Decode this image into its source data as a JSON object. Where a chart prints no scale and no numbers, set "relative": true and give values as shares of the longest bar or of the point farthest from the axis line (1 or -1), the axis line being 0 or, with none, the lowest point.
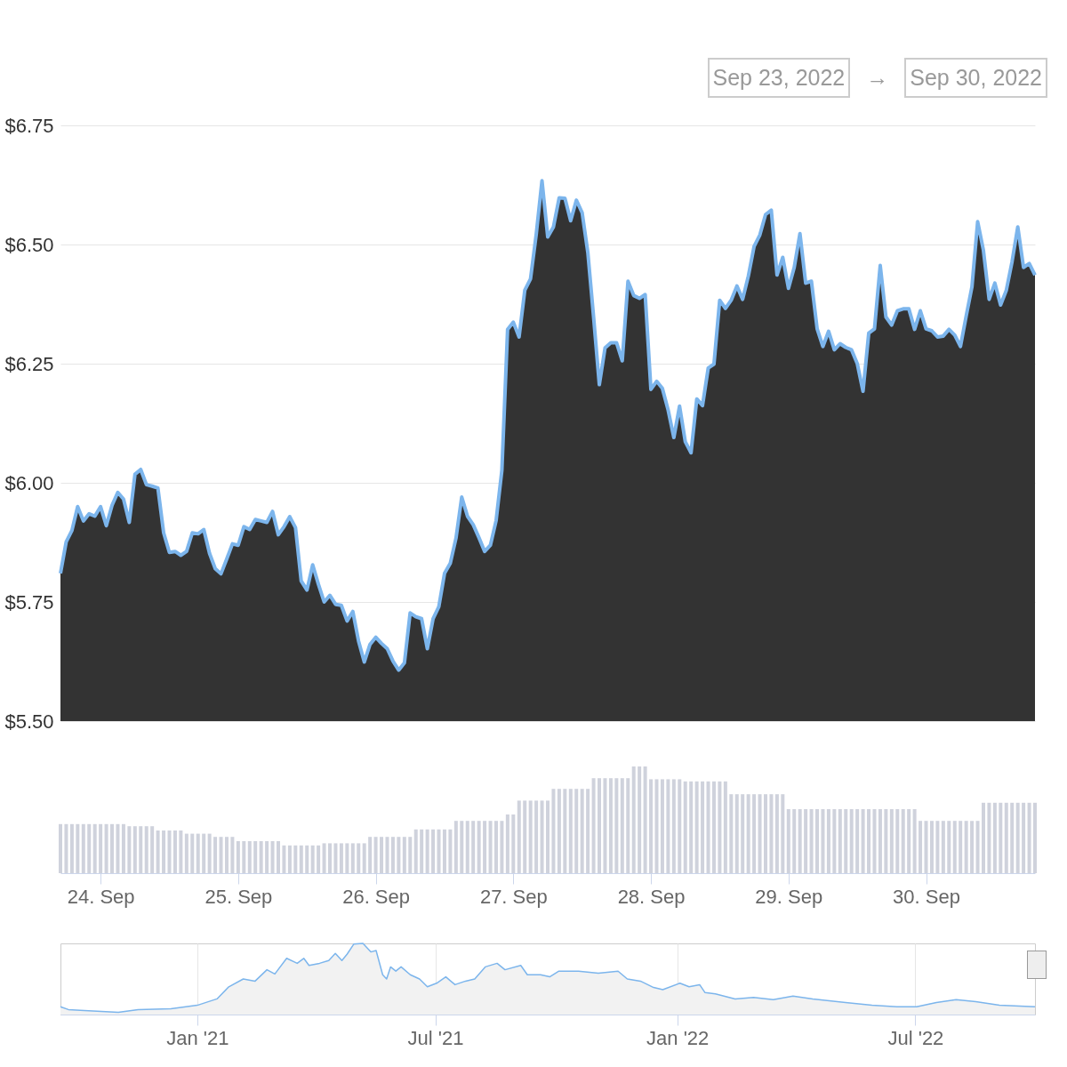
{
  "chart_data": [
    {
      "type": "area",
      "annotations": [
        "Sep 23, 2022",
        "→",
        "Sep 30, 2022"
      ],
      "x": [
        "2022-09-23T17:00",
        "2022-09-23T18:00",
        "2022-09-23T19:00",
        "2022-09-23T20:00",
        "2022-09-23T21:00",
        "2022-09-23T22:00",
        "2022-09-23T23:00",
        "2022-09-24T00:00",
        "2022-09-24T01:00",
        "2022-09-24T02:00",
        "2022-09-24T03:00",
        "2022-09-24T04:00",
        "2022-09-24T05:00",
        "2022-09-24T06:00",
        "2022-09-24T07:00",
        "2022-09-24T08:00",
        "2022-09-24T09:00",
        "2022-09-24T10:00",
        "2022-09-24T11:00",
        "2022-09-24T12:00",
        "2022-09-24T13:00",
        "2022-09-24T14:00",
        "2022-09-24T15:00",
        "2022-09-24T16:00",
        "2022-09-24T17:00",
        "2022-09-24T18:00",
        "2022-09-24T19:00",
        "2022-09-24T20:00",
        "2022-09-24T21:00",
        "2022-09-24T22:00",
        "2022-09-24T23:00",
        "2022-09-25T00:00",
        "2022-09-25T01:00",
        "2022-09-25T02:00",
        "2022-09-25T03:00",
        "2022-09-25T04:00",
        "2022-09-25T05:00",
        "2022-09-25T06:00",
        "2022-09-25T07:00",
        "2022-09-25T08:00",
        "2022-09-25T09:00",
        "2022-09-25T10:00",
        "2022-09-25T11:00",
        "2022-09-25T12:00",
        "2022-09-25T13:00",
        "2022-09-25T14:00",
        "2022-09-25T15:00",
        "2022-09-25T16:00",
        "2022-09-25T17:00",
        "2022-09-25T18:00",
        "2022-09-25T19:00",
        "2022-09-25T20:00",
        "2022-09-25T21:00",
        "2022-09-25T22:00",
        "2022-09-25T23:00",
        "2022-09-26T00:00",
        "2022-09-26T01:00",
        "2022-09-26T02:00",
        "2022-09-26T03:00",
        "2022-09-26T04:00",
        "2022-09-26T05:00",
        "2022-09-26T06:00",
        "2022-09-26T07:00",
        "2022-09-26T08:00",
        "2022-09-26T09:00",
        "2022-09-26T10:00",
        "2022-09-26T11:00",
        "2022-09-26T12:00",
        "2022-09-26T13:00",
        "2022-09-26T14:00",
        "2022-09-26T15:00",
        "2022-09-26T16:00",
        "2022-09-26T17:00",
        "2022-09-26T18:00",
        "2022-09-26T19:00",
        "2022-09-26T20:00",
        "2022-09-26T21:00",
        "2022-09-26T22:00",
        "2022-09-26T23:00",
        "2022-09-27T00:00",
        "2022-09-27T01:00",
        "2022-09-27T02:00",
        "2022-09-27T03:00",
        "2022-09-27T04:00",
        "2022-09-27T05:00",
        "2022-09-27T06:00",
        "2022-09-27T07:00",
        "2022-09-27T08:00",
        "2022-09-27T09:00",
        "2022-09-27T10:00",
        "2022-09-27T11:00",
        "2022-09-27T12:00",
        "2022-09-27T13:00",
        "2022-09-27T14:00",
        "2022-09-27T15:00",
        "2022-09-27T16:00",
        "2022-09-27T17:00",
        "2022-09-27T18:00",
        "2022-09-27T19:00",
        "2022-09-27T20:00",
        "2022-09-27T21:00",
        "2022-09-27T22:00",
        "2022-09-27T23:00",
        "2022-09-28T00:00",
        "2022-09-28T01:00",
        "2022-09-28T02:00",
        "2022-09-28T03:00",
        "2022-09-28T04:00",
        "2022-09-28T05:00",
        "2022-09-28T06:00",
        "2022-09-28T07:00",
        "2022-09-28T08:00",
        "2022-09-28T09:00",
        "2022-09-28T10:00",
        "2022-09-28T11:00",
        "2022-09-28T12:00",
        "2022-09-28T13:00",
        "2022-09-28T14:00",
        "2022-09-28T15:00",
        "2022-09-28T16:00",
        "2022-09-28T17:00",
        "2022-09-28T18:00",
        "2022-09-28T19:00",
        "2022-09-28T20:00",
        "2022-09-28T21:00",
        "2022-09-28T22:00",
        "2022-09-28T23:00",
        "2022-09-29T00:00",
        "2022-09-29T01:00",
        "2022-09-29T02:00",
        "2022-09-29T03:00",
        "2022-09-29T04:00",
        "2022-09-29T05:00",
        "2022-09-29T06:00",
        "2022-09-29T07:00",
        "2022-09-29T08:00",
        "2022-09-29T09:00",
        "2022-09-29T10:00",
        "2022-09-29T11:00",
        "2022-09-29T12:00",
        "2022-09-29T13:00",
        "2022-09-29T14:00",
        "2022-09-29T15:00",
        "2022-09-29T16:00",
        "2022-09-29T17:00",
        "2022-09-29T18:00",
        "2022-09-29T19:00",
        "2022-09-29T20:00",
        "2022-09-29T21:00",
        "2022-09-29T22:00",
        "2022-09-29T23:00",
        "2022-09-30T00:00",
        "2022-09-30T01:00",
        "2022-09-30T02:00",
        "2022-09-30T03:00",
        "2022-09-30T04:00",
        "2022-09-30T05:00",
        "2022-09-30T06:00",
        "2022-09-30T07:00",
        "2022-09-30T08:00",
        "2022-09-30T09:00",
        "2022-09-30T10:00",
        "2022-09-30T11:00",
        "2022-09-30T12:00",
        "2022-09-30T13:00",
        "2022-09-30T14:00",
        "2022-09-30T15:00",
        "2022-09-30T16:00",
        "2022-09-30T17:00",
        "2022-09-30T18:00",
        "2022-09-30T19:00"
      ],
      "series": [
        {
          "color": "#7cb5ec",
          "values": [
            5.81,
            5.876,
            5.9,
            5.95,
            5.92,
            5.935,
            5.93,
            5.95,
            5.91,
            5.953,
            5.98,
            5.966,
            5.917,
            6.018,
            6.028,
            5.996,
            5.993,
            5.989,
            5.895,
            5.854,
            5.856,
            5.848,
            5.856,
            5.895,
            5.893,
            5.902,
            5.852,
            5.82,
            5.809,
            5.84,
            5.872,
            5.869,
            5.908,
            5.902,
            5.923,
            5.92,
            5.917,
            5.94,
            5.891,
            5.908,
            5.929,
            5.906,
            5.794,
            5.775,
            5.828,
            5.787,
            5.75,
            5.764,
            5.745,
            5.743,
            5.71,
            5.73,
            5.668,
            5.624,
            5.661,
            5.676,
            5.663,
            5.652,
            5.626,
            5.607,
            5.622,
            5.727,
            5.719,
            5.715,
            5.652,
            5.715,
            5.74,
            5.81,
            5.831,
            5.884,
            5.97,
            5.93,
            5.912,
            5.885,
            5.856,
            5.869,
            5.921,
            6.026,
            6.322,
            6.337,
            6.306,
            6.404,
            6.428,
            6.522,
            6.634,
            6.516,
            6.537,
            6.598,
            6.597,
            6.55,
            6.593,
            6.567,
            6.483,
            6.348,
            6.206,
            6.283,
            6.294,
            6.294,
            6.256,
            6.423,
            6.393,
            6.387,
            6.395,
            6.196,
            6.213,
            6.198,
            6.153,
            6.095,
            6.161,
            6.086,
            6.063,
            6.176,
            6.162,
            6.241,
            6.249,
            6.383,
            6.366,
            6.383,
            6.413,
            6.385,
            6.434,
            6.496,
            6.52,
            6.563,
            6.572,
            6.436,
            6.473,
            6.408,
            6.452,
            6.523,
            6.419,
            6.423,
            6.323,
            6.286,
            6.318,
            6.279,
            6.292,
            6.284,
            6.279,
            6.25,
            6.192,
            6.314,
            6.323,
            6.456,
            6.348,
            6.331,
            6.361,
            6.365,
            6.365,
            6.322,
            6.361,
            6.323,
            6.319,
            6.306,
            6.308,
            6.322,
            6.31,
            6.286,
            6.35,
            6.411,
            6.548,
            6.488,
            6.385,
            6.419,
            6.373,
            6.404,
            6.464,
            6.537,
            6.452,
            6.46,
            6.436
          ]
        }
      ],
      "xlim": [
        "2022-09-23T17:00",
        "2022-09-30T19:00"
      ],
      "ylim": [
        5.5,
        6.75
      ],
      "yticks": [
        {
          "value": 5.5,
          "label": "$5.50"
        },
        {
          "value": 5.75,
          "label": "$5.75"
        },
        {
          "value": 6.0,
          "label": "$6.00"
        },
        {
          "value": 6.25,
          "label": "$6.25"
        },
        {
          "value": 6.5,
          "label": "$6.50"
        },
        {
          "value": 6.75,
          "label": "$6.75"
        }
      ],
      "grid": "y",
      "tick_labels": "y"
    },
    {
      "type": "bar",
      "relative": true,
      "x": [
        "2022-09-23T17:00",
        "2022-09-23T18:00",
        "2022-09-23T19:00",
        "2022-09-23T20:00",
        "2022-09-23T21:00",
        "2022-09-23T22:00",
        "2022-09-23T23:00",
        "2022-09-24T00:00",
        "2022-09-24T01:00",
        "2022-09-24T02:00",
        "2022-09-24T03:00",
        "2022-09-24T04:00",
        "2022-09-24T05:00",
        "2022-09-24T06:00",
        "2022-09-24T07:00",
        "2022-09-24T08:00",
        "2022-09-24T09:00",
        "2022-09-24T10:00",
        "2022-09-24T11:00",
        "2022-09-24T12:00",
        "2022-09-24T13:00",
        "2022-09-24T14:00",
        "2022-09-24T15:00",
        "2022-09-24T16:00",
        "2022-09-24T17:00",
        "2022-09-24T18:00",
        "2022-09-24T19:00",
        "2022-09-24T20:00",
        "2022-09-24T21:00",
        "2022-09-24T22:00",
        "2022-09-24T23:00",
        "2022-09-25T00:00",
        "2022-09-25T01:00",
        "2022-09-25T02:00",
        "2022-09-25T03:00",
        "2022-09-25T04:00",
        "2022-09-25T05:00",
        "2022-09-25T06:00",
        "2022-09-25T07:00",
        "2022-09-25T08:00",
        "2022-09-25T09:00",
        "2022-09-25T10:00",
        "2022-09-25T11:00",
        "2022-09-25T12:00",
        "2022-09-25T13:00",
        "2022-09-25T14:00",
        "2022-09-25T15:00",
        "2022-09-25T16:00",
        "2022-09-25T17:00",
        "2022-09-25T18:00",
        "2022-09-25T19:00",
        "2022-09-25T20:00",
        "2022-09-25T21:00",
        "2022-09-25T22:00",
        "2022-09-25T23:00",
        "2022-09-26T00:00",
        "2022-09-26T01:00",
        "2022-09-26T02:00",
        "2022-09-26T03:00",
        "2022-09-26T04:00",
        "2022-09-26T05:00",
        "2022-09-26T06:00",
        "2022-09-26T07:00",
        "2022-09-26T08:00",
        "2022-09-26T09:00",
        "2022-09-26T10:00",
        "2022-09-26T11:00",
        "2022-09-26T12:00",
        "2022-09-26T13:00",
        "2022-09-26T14:00",
        "2022-09-26T15:00",
        "2022-09-26T16:00",
        "2022-09-26T17:00",
        "2022-09-26T18:00",
        "2022-09-26T19:00",
        "2022-09-26T20:00",
        "2022-09-26T21:00",
        "2022-09-26T22:00",
        "2022-09-26T23:00",
        "2022-09-27T00:00",
        "2022-09-27T01:00",
        "2022-09-27T02:00",
        "2022-09-27T03:00",
        "2022-09-27T04:00",
        "2022-09-27T05:00",
        "2022-09-27T06:00",
        "2022-09-27T07:00",
        "2022-09-27T08:00",
        "2022-09-27T09:00",
        "2022-09-27T10:00",
        "2022-09-27T11:00",
        "2022-09-27T12:00",
        "2022-09-27T13:00",
        "2022-09-27T14:00",
        "2022-09-27T15:00",
        "2022-09-27T16:00",
        "2022-09-27T17:00",
        "2022-09-27T18:00",
        "2022-09-27T19:00",
        "2022-09-27T20:00",
        "2022-09-27T21:00",
        "2022-09-27T22:00",
        "2022-09-27T23:00",
        "2022-09-28T00:00",
        "2022-09-28T01:00",
        "2022-09-28T02:00",
        "2022-09-28T03:00",
        "2022-09-28T04:00",
        "2022-09-28T05:00",
        "2022-09-28T06:00",
        "2022-09-28T07:00",
        "2022-09-28T08:00",
        "2022-09-28T09:00",
        "2022-09-28T10:00",
        "2022-09-28T11:00",
        "2022-09-28T12:00",
        "2022-09-28T13:00",
        "2022-09-28T14:00",
        "2022-09-28T15:00",
        "2022-09-28T16:00",
        "2022-09-28T17:00",
        "2022-09-28T18:00",
        "2022-09-28T19:00",
        "2022-09-28T20:00",
        "2022-09-28T21:00",
        "2022-09-28T22:00",
        "2022-09-28T23:00",
        "2022-09-29T00:00",
        "2022-09-29T01:00",
        "2022-09-29T02:00",
        "2022-09-29T03:00",
        "2022-09-29T04:00",
        "2022-09-29T05:00",
        "2022-09-29T06:00",
        "2022-09-29T07:00",
        "2022-09-29T08:00",
        "2022-09-29T09:00",
        "2022-09-29T10:00",
        "2022-09-29T11:00",
        "2022-09-29T12:00",
        "2022-09-29T13:00",
        "2022-09-29T14:00",
        "2022-09-29T15:00",
        "2022-09-29T16:00",
        "2022-09-29T17:00",
        "2022-09-29T18:00",
        "2022-09-29T19:00",
        "2022-09-29T20:00",
        "2022-09-29T21:00",
        "2022-09-29T22:00",
        "2022-09-29T23:00",
        "2022-09-30T00:00",
        "2022-09-30T01:00",
        "2022-09-30T02:00",
        "2022-09-30T03:00",
        "2022-09-30T04:00",
        "2022-09-30T05:00",
        "2022-09-30T06:00",
        "2022-09-30T07:00",
        "2022-09-30T08:00",
        "2022-09-30T09:00",
        "2022-09-30T10:00",
        "2022-09-30T11:00",
        "2022-09-30T12:00",
        "2022-09-30T13:00",
        "2022-09-30T14:00",
        "2022-09-30T15:00",
        "2022-09-30T16:00",
        "2022-09-30T17:00",
        "2022-09-30T18:00",
        "2022-09-30T19:00"
      ],
      "series": [
        {
          "color": "#cfd2dc",
          "values": [
            0.46,
            0.46,
            0.46,
            0.46,
            0.46,
            0.46,
            0.46,
            0.46,
            0.46,
            0.46,
            0.46,
            0.46,
            0.44,
            0.44,
            0.44,
            0.44,
            0.44,
            0.4,
            0.4,
            0.4,
            0.4,
            0.4,
            0.37,
            0.37,
            0.37,
            0.37,
            0.37,
            0.34,
            0.34,
            0.34,
            0.34,
            0.3,
            0.3,
            0.3,
            0.3,
            0.3,
            0.3,
            0.3,
            0.3,
            0.26,
            0.26,
            0.26,
            0.26,
            0.26,
            0.26,
            0.26,
            0.28,
            0.28,
            0.28,
            0.28,
            0.28,
            0.28,
            0.28,
            0.28,
            0.34,
            0.34,
            0.34,
            0.34,
            0.34,
            0.34,
            0.34,
            0.34,
            0.41,
            0.41,
            0.41,
            0.41,
            0.41,
            0.41,
            0.41,
            0.49,
            0.49,
            0.49,
            0.49,
            0.49,
            0.49,
            0.49,
            0.49,
            0.49,
            0.55,
            0.55,
            0.68,
            0.68,
            0.68,
            0.68,
            0.68,
            0.68,
            0.79,
            0.79,
            0.79,
            0.79,
            0.79,
            0.79,
            0.79,
            0.89,
            0.89,
            0.89,
            0.89,
            0.89,
            0.89,
            0.89,
            1,
            1,
            1,
            0.88,
            0.88,
            0.88,
            0.88,
            0.88,
            0.88,
            0.86,
            0.86,
            0.86,
            0.86,
            0.86,
            0.86,
            0.86,
            0.86,
            0.74,
            0.74,
            0.74,
            0.74,
            0.74,
            0.74,
            0.74,
            0.74,
            0.74,
            0.74,
            0.6,
            0.6,
            0.6,
            0.6,
            0.6,
            0.6,
            0.6,
            0.6,
            0.6,
            0.6,
            0.6,
            0.6,
            0.6,
            0.6,
            0.6,
            0.6,
            0.6,
            0.6,
            0.6,
            0.6,
            0.6,
            0.6,
            0.6,
            0.49,
            0.49,
            0.49,
            0.49,
            0.49,
            0.49,
            0.49,
            0.49,
            0.49,
            0.49,
            0.49,
            0.66,
            0.66,
            0.66,
            0.66,
            0.66,
            0.66,
            0.66,
            0.66,
            0.66,
            0.66
          ]
        }
      ],
      "xlim": [
        "2022-09-23T17:00",
        "2022-09-30T19:00"
      ],
      "xticks": [
        {
          "value": "2022-09-24",
          "label": "24. Sep"
        },
        {
          "value": "2022-09-25",
          "label": "25. Sep"
        },
        {
          "value": "2022-09-26",
          "label": "26. Sep"
        },
        {
          "value": "2022-09-27",
          "label": "27. Sep"
        },
        {
          "value": "2022-09-28",
          "label": "28. Sep"
        },
        {
          "value": "2022-09-29",
          "label": "29. Sep"
        },
        {
          "value": "2022-09-30",
          "label": "30. Sep"
        }
      ],
      "tick_labels": "x"
    },
    {
      "type": "area",
      "relative": true,
      "x": [
        "2020-09-19",
        "2020-09-25",
        "2020-10-04",
        "2020-11-02",
        "2020-11-17",
        "2020-12-12",
        "2021-01-01",
        "2021-01-16",
        "2021-01-25",
        "2021-02-05",
        "2021-02-14",
        "2021-02-23",
        "2021-03-01",
        "2021-03-10",
        "2021-03-18",
        "2021-03-23",
        "2021-03-27",
        "2021-04-04",
        "2021-04-11",
        "2021-04-16",
        "2021-04-21",
        "2021-04-25",
        "2021-04-30",
        "2021-05-07",
        "2021-05-13",
        "2021-05-17",
        "2021-05-22",
        "2021-05-25",
        "2021-05-28",
        "2021-06-01",
        "2021-06-05",
        "2021-06-12",
        "2021-06-19",
        "2021-06-25",
        "2021-07-02",
        "2021-07-09",
        "2021-07-16",
        "2021-07-24",
        "2021-07-31",
        "2021-08-08",
        "2021-08-17",
        "2021-08-23",
        "2021-09-04",
        "2021-09-09",
        "2021-09-19",
        "2021-09-26",
        "2021-10-03",
        "2021-10-18",
        "2021-11-02",
        "2021-11-17",
        "2021-11-24",
        "2021-12-04",
        "2021-12-14",
        "2021-12-21",
        "2022-01-03",
        "2022-01-10",
        "2022-01-18",
        "2022-01-22",
        "2022-01-30",
        "2022-02-14",
        "2022-02-28",
        "2022-03-15",
        "2022-03-30",
        "2022-04-14",
        "2022-05-09",
        "2022-05-29",
        "2022-06-17",
        "2022-07-02",
        "2022-07-17",
        "2022-08-01",
        "2022-08-16",
        "2022-09-03",
        "2022-09-30"
      ],
      "series": [
        {
          "color": "#7cb5ec",
          "values": [
            0.11,
            0.07,
            0.06,
            0.03,
            0.07,
            0.08,
            0.13,
            0.22,
            0.39,
            0.5,
            0.47,
            0.63,
            0.57,
            0.79,
            0.72,
            0.79,
            0.69,
            0.72,
            0.76,
            0.86,
            0.76,
            0.85,
            0.99,
            1,
            0.88,
            0.9,
            0.56,
            0.5,
            0.67,
            0.61,
            0.67,
            0.56,
            0.5,
            0.39,
            0.44,
            0.53,
            0.42,
            0.47,
            0.5,
            0.67,
            0.72,
            0.63,
            0.69,
            0.56,
            0.56,
            0.53,
            0.61,
            0.61,
            0.58,
            0.61,
            0.5,
            0.47,
            0.38,
            0.35,
            0.44,
            0.39,
            0.42,
            0.31,
            0.29,
            0.22,
            0.24,
            0.21,
            0.26,
            0.22,
            0.17,
            0.13,
            0.11,
            0.11,
            0.17,
            0.21,
            0.18,
            0.13,
            0.11
          ]
        }
      ],
      "xlim": [
        "2020-09-19",
        "2022-09-30"
      ],
      "xticks": [
        {
          "value": "2021-01-01",
          "label": "Jan '21"
        },
        {
          "value": "2021-07-01",
          "label": "Jul '21"
        },
        {
          "value": "2022-01-01",
          "label": "Jan '22"
        },
        {
          "value": "2022-07-01",
          "label": "Jul '22"
        }
      ],
      "grid": "x",
      "tick_labels": "x"
    }
  ]
}
